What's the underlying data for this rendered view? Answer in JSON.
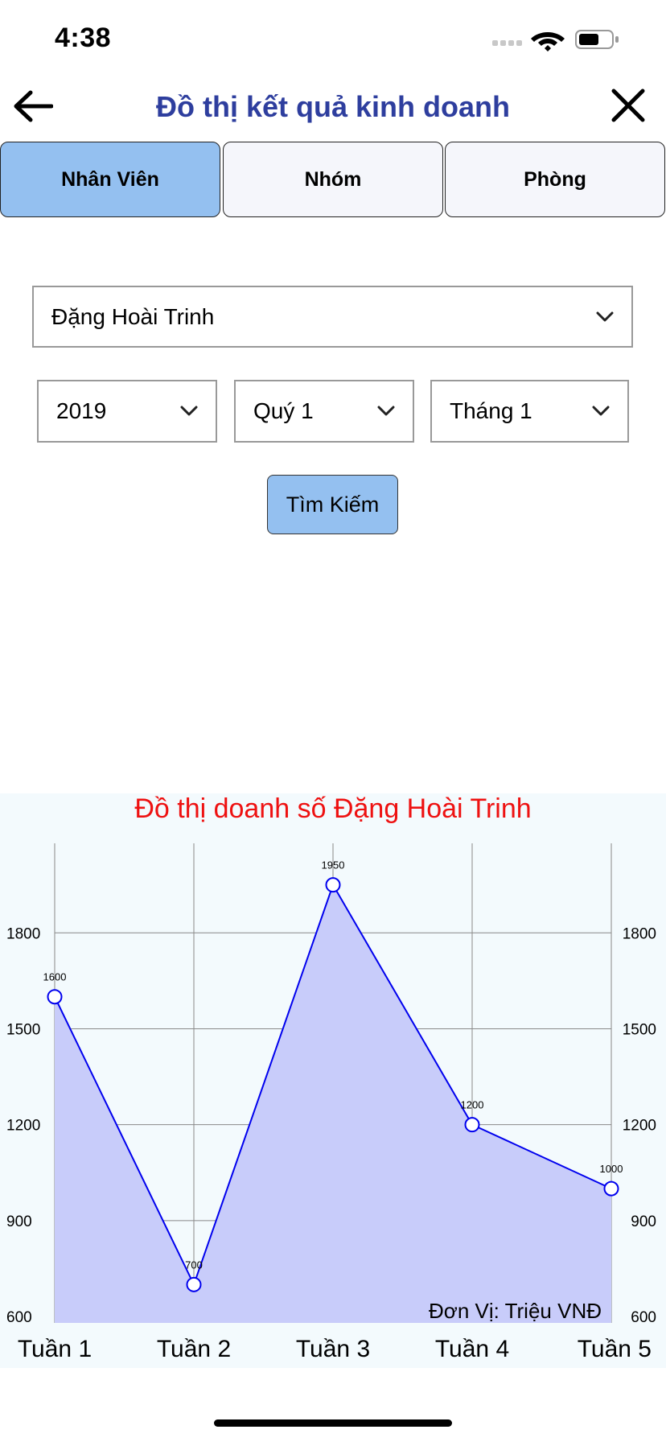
{
  "status": {
    "time": "4:38"
  },
  "nav": {
    "title": "Đồ thị kết quả kinh doanh"
  },
  "tabs": [
    {
      "label": "Nhân Viên",
      "active": true
    },
    {
      "label": "Nhóm",
      "active": false
    },
    {
      "label": "Phòng",
      "active": false
    }
  ],
  "filters": {
    "employee": "Đặng Hoài Trinh",
    "year": "2019",
    "quarter": "Quý 1",
    "month": "Tháng 1",
    "search_label": "Tìm Kiếm"
  },
  "colors": {
    "accent": "#94c0f0",
    "title": "#2e3e9e",
    "chart_title": "#ee1111",
    "series_line": "#0000ee",
    "series_fill": "#c8ccfa",
    "chart_bg": "#f3fafd"
  },
  "chart_data": {
    "type": "area",
    "title": "Đồ thị doanh số Đặng Hoài Trinh",
    "categories": [
      "Tuần 1",
      "Tuần 2",
      "Tuần 3",
      "Tuần 4",
      "Tuần 5"
    ],
    "values": [
      1600,
      700,
      1950,
      1200,
      1000
    ],
    "data_labels": [
      "1600",
      "700",
      "1950",
      "1200",
      "1000"
    ],
    "ylim": [
      580,
      2080
    ],
    "yticks": [
      600,
      900,
      1200,
      1500,
      1800
    ],
    "annotation": "Đơn Vị: Triệu VNĐ",
    "grid": true,
    "y_axis_both_sides": true
  }
}
